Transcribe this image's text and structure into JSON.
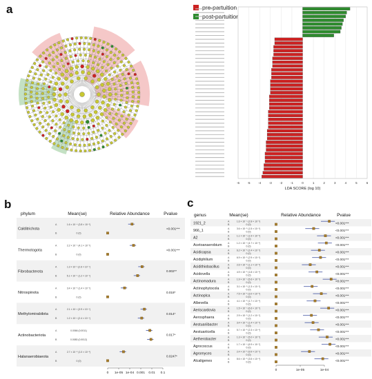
{
  "panels": {
    "a": "a",
    "b": "b",
    "c": "c"
  },
  "colors": {
    "pre": "#cc2222",
    "post": "#2e8b2e",
    "dot": "#a67c2a",
    "ci": "#5060a8",
    "cladeNode": "#c8c832"
  },
  "legend": {
    "pre": "pre-partuition",
    "post": "post-partuition"
  },
  "chart_data": [
    {
      "type": "bar",
      "panel": "a",
      "title": "",
      "xlabel": "LDA SCORE (log 10)",
      "xticks": [
        "-6",
        "-5",
        "-4",
        "-3",
        "-2",
        "-1",
        "0",
        "1",
        "2",
        "3",
        "4",
        "5",
        "6"
      ],
      "xlim": [
        -6,
        6
      ],
      "categories": [
        "c1",
        "c2",
        "c3",
        "c4",
        "c5",
        "c6",
        "c7",
        "c8",
        "c9",
        "c10",
        "c11",
        "c12",
        "c13",
        "c14",
        "c15",
        "c16",
        "c17",
        "c18",
        "c19",
        "c20",
        "c21",
        "c22",
        "c23",
        "c24",
        "c25",
        "c26",
        "c27",
        "c28",
        "c29",
        "c30",
        "c31",
        "c32",
        "c33",
        "c34",
        "c35",
        "c36",
        "c37",
        "c38",
        "c39",
        "c40",
        "c41",
        "c42",
        "c43",
        "c44",
        "c45"
      ],
      "series": [
        {
          "name": "post-partuition",
          "values": [
            4.4,
            4.1,
            4.0,
            3.8,
            3.7,
            3.6,
            3.5,
            2.9,
            0,
            0,
            0,
            0,
            0,
            0,
            0,
            0,
            0,
            0,
            0,
            0,
            0,
            0,
            0,
            0,
            0,
            0,
            0,
            0,
            0,
            0,
            0,
            0,
            0,
            0,
            0,
            0,
            0,
            0,
            0,
            0,
            0,
            0,
            0,
            0,
            0
          ]
        },
        {
          "name": "pre-partuition",
          "values": [
            0,
            0,
            0,
            0,
            0,
            0,
            0,
            0,
            -2.6,
            -2.6,
            -2.7,
            -2.7,
            -2.7,
            -2.8,
            -2.8,
            -2.8,
            -2.9,
            -2.9,
            -2.9,
            -3.0,
            -3.0,
            -3.0,
            -3.0,
            -3.1,
            -3.1,
            -3.1,
            -3.1,
            -3.2,
            -3.2,
            -3.2,
            -3.2,
            -3.2,
            -3.3,
            -3.3,
            -3.3,
            -3.4,
            -3.4,
            -3.4,
            -3.5,
            -3.5,
            -3.5,
            -3.6,
            -3.6,
            -3.7,
            -3.8
          ]
        }
      ]
    },
    {
      "type": "scatter",
      "panel": "b",
      "headers": {
        "phylum": "phylum",
        "mean": "Mean(se)",
        "ra": "Relative Abundance",
        "pvalue": "Pvalue"
      },
      "xticks": [
        "0",
        "1e-05",
        "1e-04",
        "0.001",
        "0.01",
        "0.1"
      ],
      "rows": [
        {
          "name": "Calditrichota",
          "pvalue": "<0.001***",
          "a": {
            "mean": "1.6 × 10⁻⁴ (3.8 × 10⁻⁵)",
            "x": 0.00016
          },
          "b": {
            "mean": "0 (0)",
            "x": 0
          }
        },
        {
          "name": "Thermotogota",
          "pvalue": "<0.001***",
          "a": {
            "mean": "2.2 × 10⁻⁴ (4.1 × 10⁻⁵)",
            "x": 0.00022
          },
          "b": {
            "mean": "0 (0)",
            "x": 0
          }
        },
        {
          "name": "Fibrobacterota",
          "pvalue": "0.002**",
          "a": {
            "mean": "1.3 × 10⁻³ (2.6 × 10⁻⁴)",
            "x": 0.0013
          },
          "b": {
            "mean": "5.1 × 10⁻⁴ (1.2 × 10⁻⁴)",
            "x": 0.00051
          }
        },
        {
          "name": "Nitrospinota",
          "pvalue": "0.018*",
          "a": {
            "mean": "3.4 × 10⁻⁵ (1.4 × 10⁻⁵)",
            "x": 3.4e-05
          },
          "b": {
            "mean": "0 (0)",
            "x": 0
          }
        },
        {
          "name": "Methylomirabilota",
          "pvalue": "0.014*",
          "a": {
            "mean": "2.1 × 10⁻³ (3.9 × 10⁻⁴)",
            "x": 0.0021
          },
          "b": {
            "mean": "1.2 × 10⁻³ (2.4 × 10⁻⁴)",
            "x": 0.0012
          }
        },
        {
          "name": "Actinobacteriota",
          "pvalue": "0.017*",
          "a": {
            "mean": "0.0066 (0.0011)",
            "x": 0.0066
          },
          "b": {
            "mean": "0.0083 (0.0012)",
            "x": 0.0083
          }
        },
        {
          "name": "Halanaerobiaeota",
          "pvalue": "0.0247*",
          "a": {
            "mean": "2.7 × 10⁻⁵ (1.0 × 10⁻⁵)",
            "x": 2.7e-05
          },
          "b": {
            "mean": "0 (0)",
            "x": 0
          }
        }
      ]
    },
    {
      "type": "scatter",
      "panel": "c",
      "headers": {
        "genus": "genus",
        "mean": "Mean(se)",
        "ra": "Relative Abundance",
        "pvalue": "Pvalue"
      },
      "xticks": [
        "0",
        "1e-05",
        "1e-04"
      ],
      "rows": [
        {
          "name": "1921_2",
          "pvalue": "<0.001***",
          "a": {
            "mean": "1.6 × 10⁻⁴ (2.8 × 10⁻⁵)",
            "x": 0.00016
          },
          "b": {
            "mean": "0 (0)",
            "x": 0
          }
        },
        {
          "name": "966_1",
          "pvalue": "<0.001***",
          "a": {
            "mean": "3.6 × 10⁻⁵ (1.5 × 10⁻⁵)",
            "x": 3.6e-05
          },
          "b": {
            "mean": "0 (0)",
            "x": 0
          }
        },
        {
          "name": "A2",
          "pvalue": "<0.001***",
          "a": {
            "mean": "1.1 × 10⁻⁴ (1.9 × 10⁻⁵)",
            "x": 0.00011
          },
          "b": {
            "mean": "0 (0)",
            "x": 0
          }
        },
        {
          "name": "Acetoanaerobium",
          "pvalue": "<0.001***",
          "a": {
            "mean": "1.2 × 10⁻⁴ (4.7 × 10⁻⁵)",
            "x": 0.00012
          },
          "b": {
            "mean": "0 (0)",
            "x": 0
          }
        },
        {
          "name": "Acidicapsa",
          "pvalue": "<0.001***",
          "a": {
            "mean": "6.2 × 10⁻⁵ (2.4 × 10⁻⁵)",
            "x": 6.2e-05
          },
          "b": {
            "mean": "0 (0)",
            "x": 0
          }
        },
        {
          "name": "Acidiphilium",
          "pvalue": "<0.001***",
          "a": {
            "mean": "6.9 × 10⁻⁵ (2.9 × 10⁻⁵)",
            "x": 6.9e-05
          },
          "b": {
            "mean": "0 (0)",
            "x": 0
          }
        },
        {
          "name": "Acidithiobacillus",
          "pvalue": "<0.001***",
          "a": {
            "mean": "2.6 × 10⁻⁵ (1.1 × 10⁻⁵)",
            "x": 2.6e-05
          },
          "b": {
            "mean": "0 (0)",
            "x": 0
          }
        },
        {
          "name": "Acidovella",
          "pvalue": "<0.001***",
          "a": {
            "mean": "4.9 × 10⁻⁵ (1.8 × 10⁻⁵)",
            "x": 4.9e-05
          },
          "b": {
            "mean": "0 (0)",
            "x": 0
          }
        },
        {
          "name": "Actinomadura",
          "pvalue": "<0.001***",
          "a": {
            "mean": "1.9 × 10⁻⁴ (5.6 × 10⁻⁵)",
            "x": 0.00019
          },
          "b": {
            "mean": "0 (0)",
            "x": 0
          }
        },
        {
          "name": "Actinophytocola",
          "pvalue": "<0.001***",
          "a": {
            "mean": "3.1 × 10⁻⁵ (1.3 × 10⁻⁵)",
            "x": 3.1e-05
          },
          "b": {
            "mean": "0 (0)",
            "x": 0
          }
        },
        {
          "name": "Actinoplca",
          "pvalue": "<0.001***",
          "a": {
            "mean": "7.5 × 10⁻⁵ (3.0 × 10⁻⁵)",
            "x": 7.5e-05
          },
          "b": {
            "mean": "0 (0)",
            "x": 0
          }
        },
        {
          "name": "Albevella",
          "pvalue": "<0.001***",
          "a": {
            "mean": "4.1 × 10⁻⁵ (1.7 × 10⁻⁵)",
            "x": 4.1e-05
          },
          "b": {
            "mean": "0 (0)",
            "x": 0
          }
        },
        {
          "name": "Aeriscardovia",
          "pvalue": "<0.001***",
          "a": {
            "mean": "1.5 × 10⁻⁴ (6.6 × 10⁻⁵)",
            "x": 0.00015
          },
          "b": {
            "mean": "0 (0)",
            "x": 0
          }
        },
        {
          "name": "Aerosphaera",
          "pvalue": "<0.001***",
          "a": {
            "mean": "2.9 × 10⁻⁵ (1.2 × 10⁻⁵)",
            "x": 2.9e-05
          },
          "b": {
            "mean": "0 (0)",
            "x": 0
          }
        },
        {
          "name": "Aestuariibacter",
          "pvalue": "<0.001***",
          "a": {
            "mean": "3.4 × 10⁻⁵ (1.4 × 10⁻⁵)",
            "x": 3.4e-05
          },
          "b": {
            "mean": "0 (0)",
            "x": 0
          }
        },
        {
          "name": "Aestuariicella",
          "pvalue": "<0.001***",
          "a": {
            "mean": "5.7 × 10⁻⁵ (2.3 × 10⁻⁵)",
            "x": 5.7e-05
          },
          "b": {
            "mean": "0 (0)",
            "x": 0
          }
        },
        {
          "name": "Aetherobacter",
          "pvalue": "<0.001***",
          "a": {
            "mean": "1.3 × 10⁻⁴ (5.0 × 10⁻⁵)",
            "x": 0.00013
          },
          "b": {
            "mean": "0 (0)",
            "x": 0
          }
        },
        {
          "name": "Agrococcus",
          "pvalue": "<0.001***",
          "a": {
            "mean": "1.7 × 10⁻⁴ (6.9 × 10⁻⁵)",
            "x": 0.00017
          },
          "b": {
            "mean": "0 (0)",
            "x": 0
          }
        },
        {
          "name": "Agromyces",
          "pvalue": "<0.001***",
          "a": {
            "mean": "2.4 × 10⁻⁵ (9.9 × 10⁻⁶)",
            "x": 2.4e-05
          },
          "b": {
            "mean": "0 (0)",
            "x": 0
          }
        },
        {
          "name": "Alcaligenes",
          "pvalue": "<0.001***",
          "a": {
            "mean": "8.6 × 10⁻⁵ (3.5 × 10⁻⁵)",
            "x": 8.6e-05
          },
          "b": {
            "mean": "0 (0)",
            "x": 0
          }
        }
      ]
    }
  ]
}
